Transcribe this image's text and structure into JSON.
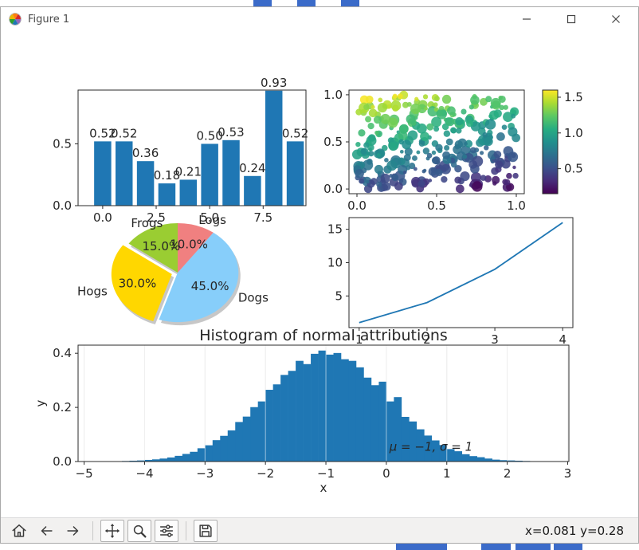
{
  "titlebar": {
    "title": "Figure 1",
    "icon": "matplotlib-logo-icon",
    "controls": [
      {
        "name": "minimize-button",
        "icon": "minimize-icon"
      },
      {
        "name": "maximize-button",
        "icon": "maximize-icon"
      },
      {
        "name": "close-button",
        "icon": "close-icon"
      }
    ]
  },
  "toolbar": {
    "buttons": [
      {
        "name": "home-button",
        "icon": "home-icon"
      },
      {
        "name": "back-button",
        "icon": "arrow-left-icon"
      },
      {
        "name": "forward-button",
        "icon": "arrow-right-icon"
      },
      {
        "name": "pan-button",
        "icon": "move-arrows-icon"
      },
      {
        "name": "zoom-button",
        "icon": "magnifier-icon"
      },
      {
        "name": "subplots-button",
        "icon": "sliders-icon"
      },
      {
        "name": "save-button",
        "icon": "floppy-disk-icon"
      }
    ]
  },
  "statusbar": {
    "coords": "x=0.081 y=0.28"
  },
  "colors": {
    "mpl_blue": "#1f77b4",
    "background_peek_blue": "#3b6bc9"
  },
  "chart_data": [
    {
      "id": "bar",
      "type": "bar",
      "x": [
        0,
        1,
        2,
        3,
        4,
        5,
        6,
        7,
        8,
        9
      ],
      "values": [
        0.52,
        0.52,
        0.36,
        0.18,
        0.21,
        0.5,
        0.53,
        0.24,
        0.93,
        0.52
      ],
      "bar_labels": [
        "0.52",
        "0.52",
        "0.36",
        "0.18",
        "0.21",
        "0.50",
        "0.53",
        "0.24",
        "0.93",
        "0.52"
      ],
      "color": "#1f77b4",
      "bar_width": 0.8,
      "xticks": [
        0,
        2.5,
        5,
        7.5
      ],
      "xtick_labels": [
        "0.0",
        "2.5",
        "5.0",
        "7.5"
      ],
      "yticks": [
        0,
        0.5
      ],
      "ytick_labels": [
        "0.0",
        "0.5"
      ],
      "xlim": [
        -1.15,
        9.5
      ],
      "ylim": [
        0,
        0.935
      ]
    },
    {
      "id": "scatter",
      "type": "scatter",
      "n_points": 330,
      "seed": 12,
      "cmap": "viridis",
      "color_rule": "0.75*y + 0.25*(1-x)",
      "xticks": [
        0,
        0.5,
        1
      ],
      "xtick_labels": [
        "0.0",
        "0.5",
        "1.0"
      ],
      "yticks": [
        0,
        0.5,
        1
      ],
      "ytick_labels": [
        "0.0",
        "0.5",
        "1.0"
      ],
      "xlim": [
        -0.05,
        1.05
      ],
      "ylim": [
        -0.05,
        1.05
      ],
      "colorbar": {
        "vmin": 0.15,
        "vmax": 1.6,
        "ticks": [
          0.5,
          1.0,
          1.5
        ],
        "tick_labels": [
          "0.5",
          "1.0",
          "1.5"
        ]
      }
    },
    {
      "id": "pie",
      "type": "pie",
      "labels": [
        "Frogs",
        "Hogs",
        "Dogs",
        "Logs"
      ],
      "values": [
        15,
        30,
        45,
        10
      ],
      "pct_labels": [
        "15.0%",
        "30.0%",
        "45.0%",
        "10.0%"
      ],
      "colors": [
        "#9acd32",
        "#ffd700",
        "#87cefa",
        "#f08080"
      ],
      "explode": [
        0,
        0.1,
        0,
        0
      ],
      "startangle": 90,
      "shadow": true
    },
    {
      "id": "line",
      "type": "line",
      "x": [
        1,
        2,
        3,
        4
      ],
      "y": [
        1,
        4,
        9,
        16
      ],
      "color": "#1f77b4",
      "xticks": [
        1,
        2,
        3,
        4
      ],
      "xtick_labels": [
        "1",
        "2",
        "3",
        "4"
      ],
      "yticks": [
        5,
        10,
        15
      ],
      "ytick_labels": [
        "5",
        "10",
        "15"
      ],
      "xlim": [
        0.85,
        4.15
      ],
      "ylim": [
        0.25,
        16.75
      ]
    },
    {
      "id": "hist",
      "type": "histogram",
      "title": "Histogram of normal attributions",
      "xlabel": "x",
      "ylabel": "y",
      "annotation": "μ = −1,  σ = 1",
      "annotation_xy": [
        0.05,
        0.04
      ],
      "mu": -1,
      "sigma": 1,
      "color": "#1f77b4",
      "bin_start": -4.5,
      "bin_width": 0.125,
      "bin_heights": [
        0.001,
        0.002,
        0.003,
        0.004,
        0.006,
        0.008,
        0.011,
        0.015,
        0.021,
        0.028,
        0.036,
        0.049,
        0.06,
        0.079,
        0.095,
        0.115,
        0.146,
        0.166,
        0.201,
        0.222,
        0.265,
        0.285,
        0.32,
        0.335,
        0.372,
        0.36,
        0.398,
        0.41,
        0.395,
        0.401,
        0.378,
        0.372,
        0.348,
        0.31,
        0.282,
        0.295,
        0.222,
        0.238,
        0.165,
        0.148,
        0.119,
        0.096,
        0.078,
        0.061,
        0.046,
        0.038,
        0.027,
        0.02,
        0.016,
        0.011,
        0.007,
        0.005,
        0.004,
        0.003,
        0.002,
        0.001
      ],
      "xticks": [
        -5,
        -4,
        -3,
        -2,
        -1,
        0,
        1,
        2,
        3
      ],
      "xtick_labels": [
        "−5",
        "−4",
        "−3",
        "−2",
        "−1",
        "0",
        "1",
        "2",
        "3"
      ],
      "yticks": [
        0,
        0.2,
        0.4
      ],
      "ytick_labels": [
        "0.0",
        "0.2",
        "0.4"
      ],
      "xlim": [
        -5.1,
        3.02
      ],
      "ylim": [
        0,
        0.43
      ],
      "grid": "vertical"
    }
  ]
}
